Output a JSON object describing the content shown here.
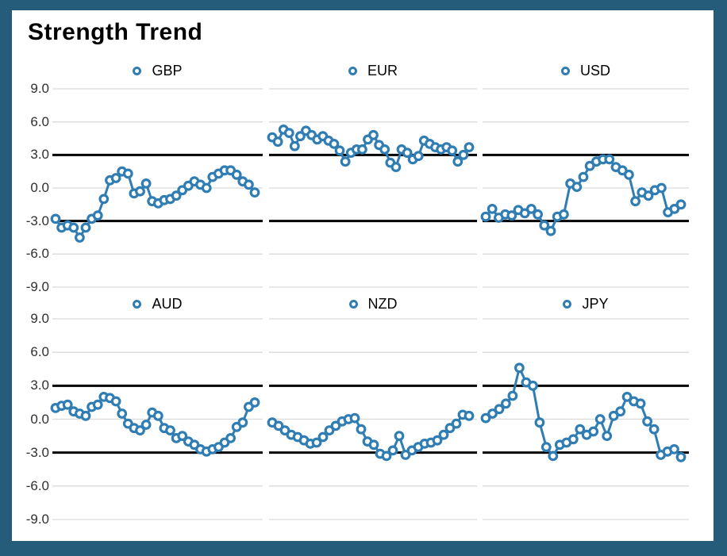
{
  "title": "Strength Trend",
  "colors": {
    "accent": "#2F7DB3",
    "marker_fill": "#FFFFFF",
    "grid": "#DADADA",
    "ref_line": "#000000",
    "frame_border": "#245C7A",
    "background": "#FFFFFF",
    "axis_text": "#303030",
    "title_text": "#000000"
  },
  "axis": {
    "ticks": [
      "9.0",
      "6.0",
      "3.0",
      "0.0",
      "-3.0",
      "-6.0",
      "-9.0"
    ],
    "tick_values": [
      9,
      6,
      3,
      0,
      -3,
      -6,
      -9
    ],
    "ymin": -9,
    "ymax": 9,
    "ref_lines": [
      3,
      -3
    ],
    "grid": "on"
  },
  "legend_marker": "circle-outline-icon",
  "chart_data": [
    {
      "type": "line",
      "title": "GBP",
      "legend_position": "top",
      "ylim": [
        -9,
        9
      ],
      "ref_lines": [
        3,
        -3
      ],
      "values": [
        -2.8,
        -3.6,
        -3.4,
        -3.6,
        -4.5,
        -3.6,
        -2.8,
        -2.5,
        -1.0,
        0.7,
        0.9,
        1.5,
        1.3,
        -0.5,
        -0.3,
        0.4,
        -1.2,
        -1.4,
        -1.1,
        -1.0,
        -0.7,
        -0.2,
        0.2,
        0.6,
        0.3,
        0.0,
        1.0,
        1.3,
        1.6,
        1.6,
        1.2,
        0.6,
        0.3,
        -0.4
      ]
    },
    {
      "type": "line",
      "title": "EUR",
      "legend_position": "top",
      "ylim": [
        -9,
        9
      ],
      "ref_lines": [
        3,
        -3
      ],
      "values": [
        4.6,
        4.2,
        5.3,
        5.0,
        3.8,
        4.7,
        5.2,
        4.8,
        4.4,
        4.7,
        4.3,
        4.0,
        3.4,
        2.4,
        3.2,
        3.5,
        3.5,
        4.4,
        4.8,
        3.9,
        3.5,
        2.3,
        1.9,
        3.5,
        3.2,
        2.6,
        2.9,
        4.3,
        4.0,
        3.7,
        3.5,
        3.7,
        3.4,
        2.4,
        3.0,
        3.7
      ]
    },
    {
      "type": "line",
      "title": "USD",
      "legend_position": "top",
      "ylim": [
        -9,
        9
      ],
      "ref_lines": [
        3,
        -3
      ],
      "values": [
        -2.6,
        -1.9,
        -2.7,
        -2.4,
        -2.5,
        -2.0,
        -2.3,
        -1.9,
        -2.4,
        -3.4,
        -3.9,
        -2.6,
        -2.4,
        0.4,
        0.1,
        1.0,
        2.0,
        2.4,
        2.6,
        2.6,
        1.9,
        1.6,
        1.2,
        -1.2,
        -0.4,
        -0.7,
        -0.2,
        0.0,
        -2.2,
        -1.9,
        -1.5
      ]
    },
    {
      "type": "line",
      "title": "AUD",
      "legend_position": "top",
      "ylim": [
        -9,
        9
      ],
      "ref_lines": [
        3,
        -3
      ],
      "values": [
        1.0,
        1.2,
        1.3,
        0.7,
        0.5,
        0.3,
        1.1,
        1.3,
        2.0,
        1.9,
        1.6,
        0.5,
        -0.4,
        -0.8,
        -1.0,
        -0.5,
        0.6,
        0.3,
        -0.8,
        -1.0,
        -1.7,
        -1.5,
        -2.0,
        -2.3,
        -2.7,
        -2.9,
        -2.7,
        -2.5,
        -2.1,
        -1.7,
        -0.7,
        -0.3,
        1.1,
        1.5
      ]
    },
    {
      "type": "line",
      "title": "NZD",
      "legend_position": "top",
      "ylim": [
        -9,
        9
      ],
      "ref_lines": [
        3,
        -3
      ],
      "values": [
        -0.3,
        -0.6,
        -1.0,
        -1.4,
        -1.6,
        -1.9,
        -2.2,
        -2.1,
        -1.6,
        -1.0,
        -0.6,
        -0.2,
        0.0,
        0.1,
        -0.9,
        -2.0,
        -2.3,
        -3.1,
        -3.3,
        -2.8,
        -1.5,
        -3.2,
        -2.8,
        -2.5,
        -2.2,
        -2.1,
        -1.9,
        -1.4,
        -0.8,
        -0.4,
        0.4,
        0.3
      ]
    },
    {
      "type": "line",
      "title": "JPY",
      "legend_position": "top",
      "ylim": [
        -9,
        9
      ],
      "ref_lines": [
        3,
        -3
      ],
      "values": [
        0.1,
        0.5,
        0.9,
        1.4,
        2.1,
        4.6,
        3.3,
        3.0,
        -0.3,
        -2.5,
        -3.3,
        -2.3,
        -2.1,
        -1.8,
        -0.9,
        -1.4,
        -1.1,
        0.0,
        -1.5,
        0.3,
        0.7,
        2.0,
        1.6,
        1.4,
        -0.2,
        -0.9,
        -3.2,
        -2.9,
        -2.7,
        -3.4
      ]
    }
  ]
}
